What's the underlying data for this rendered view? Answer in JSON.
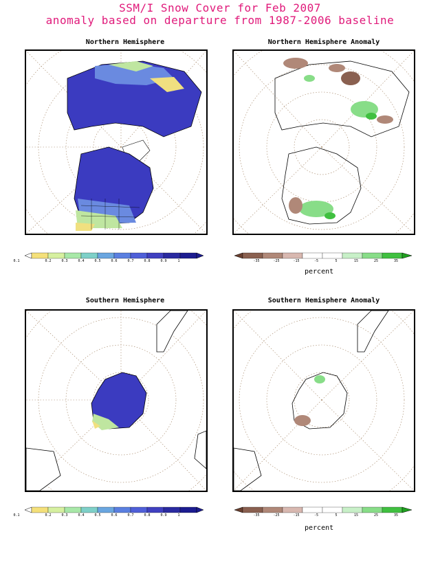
{
  "header": {
    "line1": "SSM/I Snow Cover for Feb 2007",
    "line2": "anomaly based on departure from 1987-2006 baseline"
  },
  "panels": {
    "nh": {
      "title": "Northern Hemisphere"
    },
    "nha": {
      "title": "Northern Hemisphere Anomaly"
    },
    "sh": {
      "title": "Southern Hemisphere"
    },
    "sha": {
      "title": "Southern Hemisphere Anomaly"
    }
  },
  "colorbar_cover": {
    "labels": [
      "0.1",
      "0.2",
      "0.3",
      "0.4",
      "0.5",
      "0.6",
      "0.7",
      "0.8",
      "0.9",
      "1"
    ],
    "colors": [
      "#ffffff",
      "#f4e07a",
      "#d6f0a0",
      "#a8e8a8",
      "#7ed0c8",
      "#6aa6e0",
      "#5a7fe0",
      "#4f5fd8",
      "#4040c0",
      "#2a2aa0",
      "#1c1c90"
    ]
  },
  "colorbar_anomaly": {
    "labels": [
      "-35",
      "-25",
      "-15",
      "-5",
      "5",
      "15",
      "25",
      "35"
    ],
    "colors": [
      "#6a4030",
      "#8a6050",
      "#b08878",
      "#d8b8b0",
      "#ffffff",
      "#c8f0c8",
      "#88dd88",
      "#40c040",
      "#20a020"
    ],
    "unit": "percent"
  },
  "map_colors": {
    "snow_high": "#3b3bc0",
    "snow_mid": "#6a8ae0",
    "snow_low": "#bfe6a0",
    "snow_edge": "#f0e080",
    "anom_pos": "#66cc66",
    "anom_neg": "#b08878",
    "grid": "#a08060"
  }
}
